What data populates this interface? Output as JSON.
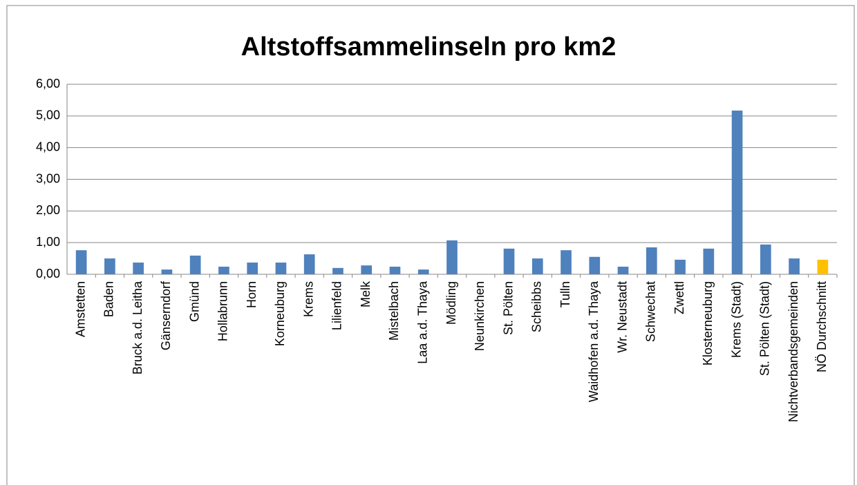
{
  "chart_data": {
    "type": "bar",
    "title": "Altstoffsammelinseln pro km2",
    "categories": [
      "Amstetten",
      "Baden",
      "Bruck a.d. Leitha",
      "Gänserndorf",
      "Gmünd",
      "Hollabrunn",
      "Horn",
      "Korneuburg",
      "Krems",
      "Lilienfeld",
      "Melk",
      "Mistelbach",
      "Laa a.d. Thaya",
      "Mödling",
      "Neunkirchen",
      "St. Pölten",
      "Scheibbs",
      "Tulln",
      "Waidhofen a.d. Thaya",
      "Wr. Neustadt",
      "Schwechat",
      "Zwettl",
      "Klosterneuburg",
      "Krems (Stadt)",
      "St. Pölten (Stadt)",
      "Nichtverbandsgemeinden",
      "NÖ Durchschnitt"
    ],
    "values": [
      0.76,
      0.5,
      0.37,
      0.15,
      0.59,
      0.24,
      0.37,
      0.37,
      0.63,
      0.2,
      0.28,
      0.24,
      0.15,
      1.07,
      0,
      0.81,
      0.5,
      0.76,
      0.55,
      0.24,
      0.85,
      0.46,
      0.81,
      5.17,
      0.94,
      0.5,
      0.46
    ],
    "colors": [
      "#4f81bd",
      "#4f81bd",
      "#4f81bd",
      "#4f81bd",
      "#4f81bd",
      "#4f81bd",
      "#4f81bd",
      "#4f81bd",
      "#4f81bd",
      "#4f81bd",
      "#4f81bd",
      "#4f81bd",
      "#4f81bd",
      "#4f81bd",
      "#4f81bd",
      "#4f81bd",
      "#4f81bd",
      "#4f81bd",
      "#4f81bd",
      "#4f81bd",
      "#4f81bd",
      "#4f81bd",
      "#4f81bd",
      "#4f81bd",
      "#4f81bd",
      "#4f81bd",
      "#ffc000"
    ],
    "ylim": [
      0,
      6
    ],
    "yticks": [
      {
        "value": 0,
        "label": "0,00"
      },
      {
        "value": 1,
        "label": "1,00"
      },
      {
        "value": 2,
        "label": "2,00"
      },
      {
        "value": 3,
        "label": "3,00"
      },
      {
        "value": 4,
        "label": "4,00"
      },
      {
        "value": 5,
        "label": "5,00"
      },
      {
        "value": 6,
        "label": "6,00"
      }
    ],
    "grid": true
  }
}
